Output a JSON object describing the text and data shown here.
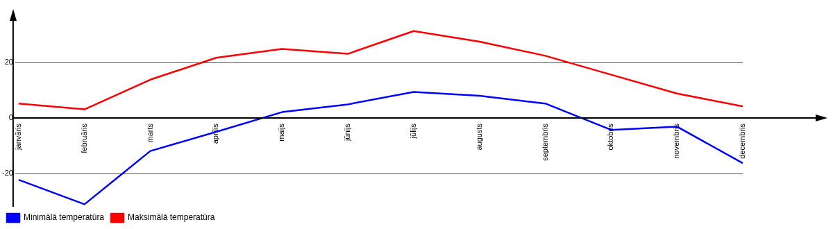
{
  "chart_data": {
    "type": "line",
    "categories": [
      "janvāris",
      "februāris",
      "marts",
      "aprīlis",
      "maijs",
      "jūnijs",
      "jūlijs",
      "augusts",
      "septembris",
      "oktobris",
      "novembris",
      "decembris"
    ],
    "series": [
      {
        "name": "Minimālā temperatūra",
        "color": "#0000ff",
        "values": [
          -22.3,
          -31.1,
          -11.9,
          -5.0,
          2.1,
          4.9,
          9.4,
          8.0,
          5.2,
          -4.3,
          -3.1,
          -16.3
        ]
      },
      {
        "name": "Maksimālā temperatūra",
        "color": "#ff0000",
        "values": [
          5.2,
          3.1,
          13.8,
          21.7,
          24.9,
          23.1,
          31.3,
          27.5,
          22.4,
          15.6,
          8.8,
          4.2
        ]
      }
    ],
    "ylim": [
      -32,
      35
    ],
    "yticks": [
      -20,
      0,
      20
    ],
    "grid": "y",
    "legend": "bottom left",
    "marker": "none",
    "line_style": "solid"
  }
}
